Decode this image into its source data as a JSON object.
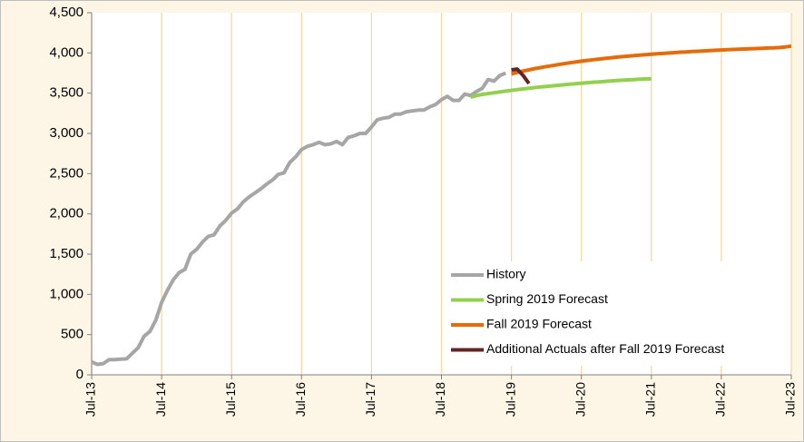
{
  "chart_data": {
    "type": "line",
    "x": [
      "Jul-13",
      null,
      null,
      null,
      null,
      null,
      null,
      null,
      null,
      null,
      null,
      null,
      "Jul-14",
      null,
      null,
      null,
      null,
      null,
      null,
      null,
      null,
      null,
      null,
      null,
      "Jul-15",
      null,
      null,
      null,
      null,
      null,
      null,
      null,
      null,
      null,
      null,
      null,
      "Jul-16",
      null,
      null,
      null,
      null,
      null,
      null,
      null,
      null,
      null,
      null,
      null,
      "Jul-17",
      null,
      null,
      null,
      null,
      null,
      null,
      null,
      null,
      null,
      null,
      null,
      "Jul-18",
      null,
      null,
      null,
      null,
      null,
      null,
      null,
      null,
      null,
      null,
      null,
      "Jul-19",
      null,
      null,
      null,
      null,
      null,
      null,
      null,
      null,
      null,
      null,
      null,
      "Jul-20",
      null,
      null,
      null,
      null,
      null,
      null,
      null,
      null,
      null,
      null,
      null,
      "Jul-21",
      null,
      null,
      null,
      null,
      null,
      null,
      null,
      null,
      null,
      null,
      null,
      "Jul-22",
      null,
      null,
      null,
      null,
      null,
      null,
      null,
      null,
      null,
      null,
      null,
      "Jul-23"
    ],
    "series": [
      {
        "name": "History",
        "color": "#a6a6a6",
        "values": [
          160,
          130,
          140,
          190,
          190,
          195,
          200,
          270,
          340,
          480,
          540,
          680,
          900,
          1050,
          1180,
          1270,
          1310,
          1500,
          1560,
          1650,
          1720,
          1740,
          1850,
          1920,
          2010,
          2060,
          2150,
          2210,
          2260,
          2310,
          2370,
          2420,
          2490,
          2510,
          2640,
          2710,
          2800,
          2840,
          2860,
          2890,
          2860,
          2870,
          2900,
          2860,
          2950,
          2970,
          3000,
          3000,
          3080,
          3170,
          3190,
          3200,
          3240,
          3240,
          3270,
          3280,
          3290,
          3290,
          3330,
          3360,
          3420,
          3460,
          3410,
          3410,
          3490,
          3470,
          3520,
          3560,
          3670,
          3650,
          3720,
          3750,
          null,
          null,
          null,
          null,
          null,
          null,
          null,
          null,
          null,
          null,
          null,
          null,
          null,
          null,
          null,
          null,
          null,
          null,
          null,
          null,
          null,
          null,
          null,
          null,
          null,
          null,
          null,
          null,
          null,
          null,
          null,
          null,
          null,
          null,
          null,
          null,
          null,
          null,
          null,
          null,
          null,
          null,
          null,
          null,
          null,
          null,
          null,
          null,
          null
        ]
      },
      {
        "name": "Spring 2019 Forecast",
        "color": "#92d050",
        "values": [
          null,
          null,
          null,
          null,
          null,
          null,
          null,
          null,
          null,
          null,
          null,
          null,
          null,
          null,
          null,
          null,
          null,
          null,
          null,
          null,
          null,
          null,
          null,
          null,
          null,
          null,
          null,
          null,
          null,
          null,
          null,
          null,
          null,
          null,
          null,
          null,
          null,
          null,
          null,
          null,
          null,
          null,
          null,
          null,
          null,
          null,
          null,
          null,
          null,
          null,
          null,
          null,
          null,
          null,
          null,
          null,
          null,
          null,
          null,
          null,
          null,
          null,
          null,
          null,
          null,
          3450,
          3470,
          3485,
          3495,
          3505,
          3515,
          3525,
          3535,
          3545,
          3553,
          3561,
          3569,
          3577,
          3584,
          3591,
          3598,
          3605,
          3612,
          3618,
          3624,
          3630,
          3636,
          3641,
          3646,
          3651,
          3656,
          3661,
          3665,
          3669,
          3673,
          3677,
          3680,
          null,
          null,
          null,
          null,
          null,
          null,
          null,
          null,
          null,
          null,
          null,
          null,
          null,
          null,
          null,
          null,
          null,
          null,
          null,
          null,
          null,
          null,
          null,
          null
        ]
      },
      {
        "name": "Fall 2019 Forecast",
        "color": "#e46c0a",
        "values": [
          null,
          null,
          null,
          null,
          null,
          null,
          null,
          null,
          null,
          null,
          null,
          null,
          null,
          null,
          null,
          null,
          null,
          null,
          null,
          null,
          null,
          null,
          null,
          null,
          null,
          null,
          null,
          null,
          null,
          null,
          null,
          null,
          null,
          null,
          null,
          null,
          null,
          null,
          null,
          null,
          null,
          null,
          null,
          null,
          null,
          null,
          null,
          null,
          null,
          null,
          null,
          null,
          null,
          null,
          null,
          null,
          null,
          null,
          null,
          null,
          null,
          null,
          null,
          null,
          null,
          null,
          null,
          null,
          null,
          null,
          null,
          null,
          3740,
          3758,
          3775,
          3790,
          3805,
          3818,
          3831,
          3843,
          3855,
          3866,
          3877,
          3888,
          3898,
          3907,
          3916,
          3924,
          3932,
          3940,
          3947,
          3954,
          3960,
          3966,
          3972,
          3978,
          3984,
          3989,
          3994,
          3999,
          4004,
          4009,
          4013,
          4017,
          4021,
          4025,
          4029,
          4033,
          4037,
          4040,
          4043,
          4046,
          4049,
          4052,
          4055,
          4058,
          4061,
          4064,
          4067,
          4075,
          4085
        ]
      },
      {
        "name": "Additional Actuals after Fall 2019 Forecast",
        "color": "#632523",
        "values": [
          null,
          null,
          null,
          null,
          null,
          null,
          null,
          null,
          null,
          null,
          null,
          null,
          null,
          null,
          null,
          null,
          null,
          null,
          null,
          null,
          null,
          null,
          null,
          null,
          null,
          null,
          null,
          null,
          null,
          null,
          null,
          null,
          null,
          null,
          null,
          null,
          null,
          null,
          null,
          null,
          null,
          null,
          null,
          null,
          null,
          null,
          null,
          null,
          null,
          null,
          null,
          null,
          null,
          null,
          null,
          null,
          null,
          null,
          null,
          null,
          null,
          null,
          null,
          null,
          null,
          null,
          null,
          null,
          null,
          null,
          null,
          null,
          3790,
          3800,
          3720,
          3620,
          null,
          null,
          null,
          null,
          null,
          null,
          null,
          null,
          null,
          null,
          null,
          null,
          null,
          null,
          null,
          null,
          null,
          null,
          null,
          null,
          null,
          null,
          null,
          null,
          null,
          null,
          null,
          null,
          null,
          null,
          null,
          null,
          null,
          null,
          null,
          null,
          null,
          null,
          null,
          null,
          null,
          null,
          null,
          null,
          null
        ]
      }
    ],
    "ylim": [
      0,
      4500
    ],
    "yticks": [
      0,
      500,
      {
        "value": 1000,
        "label": "1,000"
      },
      {
        "value": 1500,
        "label": "1,500"
      },
      {
        "value": 2000,
        "label": "2,000"
      },
      {
        "value": 2500,
        "label": "2,500"
      },
      {
        "value": 3000,
        "label": "3,000"
      },
      {
        "value": 3500,
        "label": "3,500"
      },
      {
        "value": 4000,
        "label": "4,000"
      },
      {
        "value": 4500,
        "label": "4,500"
      }
    ],
    "grid": "x",
    "legend": "lower right"
  }
}
